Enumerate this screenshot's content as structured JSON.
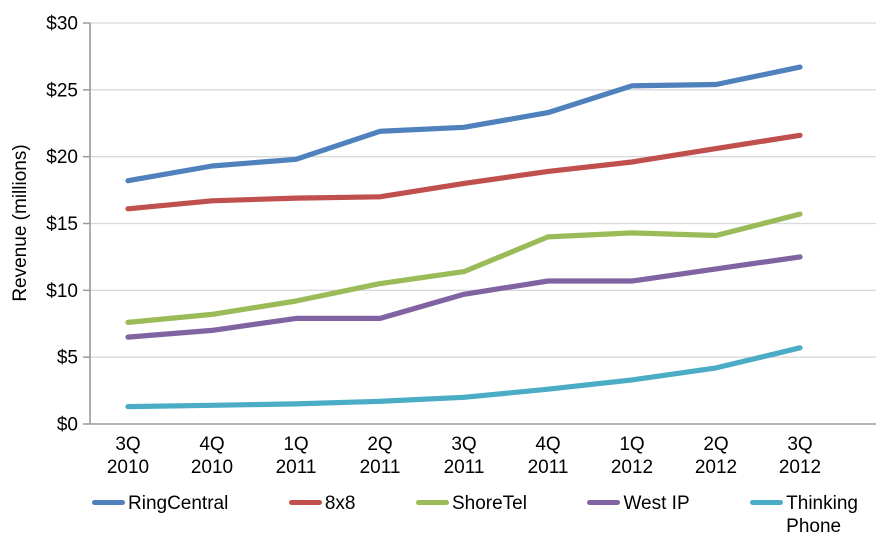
{
  "chart_data": {
    "type": "line",
    "title": "",
    "ylabel": "Revenue (millions)",
    "xlabel": "",
    "ylim": [
      0,
      30
    ],
    "y_tick_values": [
      0,
      5,
      10,
      15,
      20,
      25,
      30
    ],
    "y_tick_prefix": "$",
    "grid": true,
    "legend_position": "bottom",
    "categories": [
      "3Q 2010",
      "4Q 2010",
      "1Q 2011",
      "2Q 2011",
      "3Q 2011",
      "4Q 2011",
      "1Q 2012",
      "2Q 2012",
      "3Q 2012"
    ],
    "series": [
      {
        "name": "RingCentral",
        "legend_label": "RingCentral",
        "color": "#4F81BD",
        "values": [
          18.2,
          19.3,
          19.8,
          21.9,
          22.2,
          23.3,
          25.3,
          25.4,
          26.7
        ]
      },
      {
        "name": "8x8",
        "legend_label": "8x8",
        "color": "#C0504D",
        "values": [
          16.1,
          16.7,
          16.9,
          17.0,
          18.0,
          18.9,
          19.6,
          20.6,
          21.6
        ]
      },
      {
        "name": "ShoreTel",
        "legend_label": "ShoreTel",
        "color": "#9BBB59",
        "values": [
          7.6,
          8.2,
          9.2,
          10.5,
          11.4,
          14.0,
          14.3,
          14.1,
          15.7
        ]
      },
      {
        "name": "West IP",
        "legend_label": "West IP",
        "color": "#8064A2",
        "values": [
          6.5,
          7.0,
          7.9,
          7.9,
          9.7,
          10.7,
          10.7,
          11.6,
          12.5
        ]
      },
      {
        "name": "Thinking Phone",
        "legend_label": "Thinking\nPhone",
        "color": "#4BACC6",
        "values": [
          1.3,
          1.4,
          1.5,
          1.7,
          2.0,
          2.6,
          3.3,
          4.2,
          5.7
        ]
      }
    ],
    "colors": {
      "grid": "#d9d9d9",
      "axis": "#9b9b9b",
      "text": "#000000",
      "background": "#ffffff"
    }
  }
}
